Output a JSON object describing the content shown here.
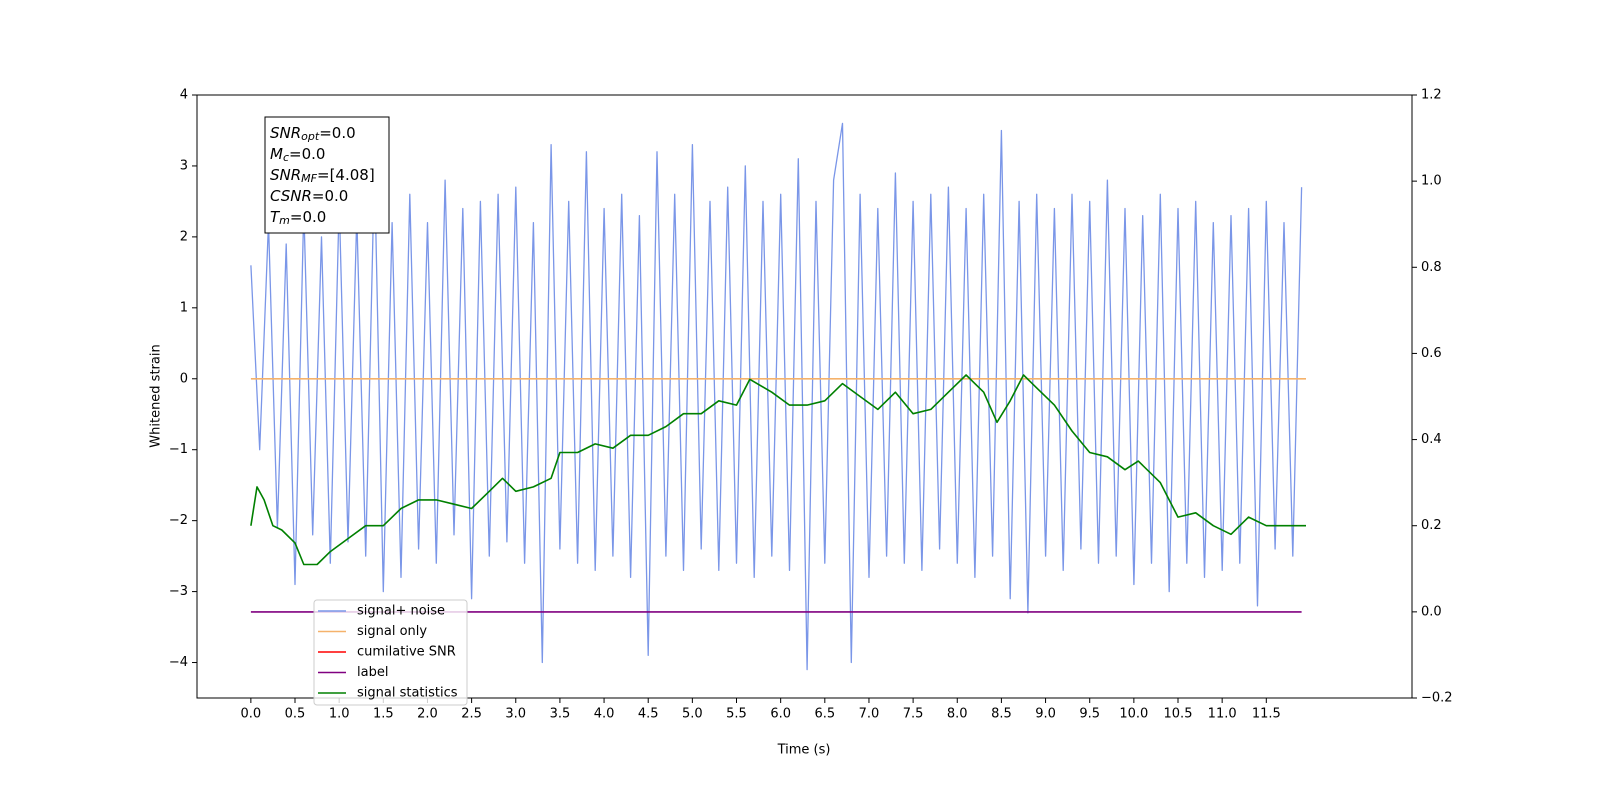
{
  "chart_data": {
    "type": "line",
    "xlabel": "Time (s)",
    "ylabel": "Whitened strain",
    "xlim": [
      -0.61,
      13.15
    ],
    "ylim": [
      -4.5,
      4
    ],
    "y2lim": [
      -0.2,
      1.2
    ],
    "xticks": [
      {
        "value": 0,
        "label": "0.0"
      },
      0.5,
      {
        "value": 1,
        "label": "1.0"
      },
      1.5,
      {
        "value": 2,
        "label": "2.0"
      },
      2.5,
      {
        "value": 3,
        "label": "3.0"
      },
      3.5,
      {
        "value": 4,
        "label": "4.0"
      },
      4.5,
      {
        "value": 5,
        "label": "5.0"
      },
      5.5,
      {
        "value": 6,
        "label": "6.0"
      },
      6.5,
      {
        "value": 7,
        "label": "7.0"
      },
      7.5,
      {
        "value": 8,
        "label": "8.0"
      },
      8.5,
      {
        "value": 9,
        "label": "9.0"
      },
      9.5,
      {
        "value": 10,
        "label": "10.0"
      },
      10.5,
      {
        "value": 11,
        "label": "11.0"
      },
      11.5
    ],
    "yticks": [
      {
        "value": -4,
        "label": "−4"
      },
      {
        "value": -3,
        "label": "−3"
      },
      {
        "value": -2,
        "label": "−2"
      },
      {
        "value": -1,
        "label": "−1"
      },
      0,
      1,
      2,
      3,
      4
    ],
    "y2ticks": [
      {
        "value": -0.2,
        "label": "−0.2"
      },
      {
        "value": 0,
        "label": "0.0"
      },
      0.2,
      0.4,
      0.6,
      0.8,
      {
        "value": 1,
        "label": "1.0"
      },
      1.2
    ],
    "legend": "lower left",
    "annotation": [
      {
        "base": "SNR",
        "sub": "opt",
        "text": "=0.0"
      },
      {
        "base": "M",
        "sub": "c",
        "text": "=0.0"
      },
      {
        "base": "SNR",
        "sub": "MF",
        "text": "=[4.08]"
      },
      {
        "base": "CSNR",
        "sub": null,
        "text": "=0.0"
      },
      {
        "base": "T",
        "sub": "m",
        "text": "=0.0"
      }
    ],
    "series": [
      {
        "name": "signal+ noise",
        "color": "#7a96e8",
        "axis": "y",
        "x": [
          0,
          0.1,
          0.2,
          0.3,
          0.4,
          0.5,
          0.6,
          0.7,
          0.8,
          0.9,
          1,
          1.1,
          1.2,
          1.3,
          1.4,
          1.5,
          1.6,
          1.7,
          1.8,
          1.9,
          2,
          2.1,
          2.2,
          2.3,
          2.4,
          2.5,
          2.6,
          2.7,
          2.8,
          2.9,
          3,
          3.1,
          3.2,
          3.3,
          3.4,
          3.5,
          3.6,
          3.7,
          3.8,
          3.9,
          4,
          4.1,
          4.2,
          4.3,
          4.4,
          4.5,
          4.6,
          4.7,
          4.8,
          4.9,
          5,
          5.1,
          5.2,
          5.3,
          5.4,
          5.5,
          5.6,
          5.7,
          5.8,
          5.9,
          6,
          6.1,
          6.2,
          6.3,
          6.4,
          6.5,
          6.6,
          6.7,
          6.8,
          6.9,
          7,
          7.1,
          7.2,
          7.3,
          7.4,
          7.5,
          7.6,
          7.7,
          7.8,
          7.9,
          8,
          8.1,
          8.2,
          8.3,
          8.4,
          8.5,
          8.6,
          8.7,
          8.8,
          8.9,
          9,
          9.1,
          9.2,
          9.3,
          9.4,
          9.5,
          9.6,
          9.7,
          9.8,
          9.9,
          10,
          10.1,
          10.2,
          10.3,
          10.4,
          10.5,
          10.6,
          10.7,
          10.8,
          10.9,
          11,
          11.1,
          11.2,
          11.3,
          11.4,
          11.5,
          11.6,
          11.7,
          11.8,
          11.9
        ],
        "values": [
          1.6,
          -1.0,
          2.2,
          -2.1,
          1.9,
          -2.9,
          2.4,
          -2.2,
          2.0,
          -2.6,
          2.5,
          -2.3,
          2.3,
          -2.5,
          3.0,
          -3.0,
          2.2,
          -2.8,
          2.6,
          -2.4,
          2.2,
          -2.6,
          2.8,
          -2.2,
          2.4,
          -3.1,
          2.5,
          -2.5,
          2.6,
          -2.3,
          2.7,
          -2.6,
          2.2,
          -4.0,
          3.3,
          -2.4,
          2.5,
          -2.6,
          3.2,
          -2.7,
          2.4,
          -2.5,
          2.6,
          -2.8,
          2.3,
          -3.9,
          3.2,
          -2.5,
          2.6,
          -2.7,
          3.3,
          -2.4,
          2.5,
          -2.7,
          2.7,
          -2.6,
          3.0,
          -2.8,
          2.5,
          -2.5,
          2.6,
          -2.7,
          3.1,
          -4.1,
          2.5,
          -2.6,
          2.8,
          3.6,
          -4.0,
          2.6,
          -2.8,
          2.4,
          -2.5,
          2.9,
          -2.6,
          2.5,
          -2.7,
          2.6,
          -2.4,
          2.7,
          -2.6,
          2.4,
          -2.8,
          2.6,
          -2.5,
          3.5,
          -3.1,
          2.5,
          -3.3,
          2.6,
          -2.5,
          2.4,
          -2.7,
          2.6,
          -2.4,
          2.5,
          -2.6,
          2.8,
          -2.5,
          2.4,
          -2.9,
          2.3,
          -2.6,
          2.6,
          -3.0,
          2.4,
          -2.6,
          2.5,
          -2.8,
          2.2,
          -2.7,
          2.3,
          -2.6,
          2.4,
          -3.2,
          2.5,
          -2.4,
          2.2,
          -2.5,
          2.7
        ]
      },
      {
        "name": "signal only",
        "color": "#f5b26b",
        "axis": "y",
        "x": [
          0,
          11.95
        ],
        "values": [
          0,
          0
        ]
      },
      {
        "name": "cumilative SNR",
        "color": "#ff0000",
        "axis": "y2",
        "x": [
          0,
          11.95
        ],
        "values": [
          null,
          null
        ]
      },
      {
        "name": "label",
        "color": "#800080",
        "axis": "y2",
        "x": [
          0,
          11.9
        ],
        "values": [
          0,
          0
        ]
      },
      {
        "name": "signal statistics",
        "color": "#008000",
        "axis": "y2",
        "x": [
          0,
          0.07,
          0.15,
          0.25,
          0.35,
          0.5,
          0.6,
          0.75,
          0.9,
          1.1,
          1.3,
          1.5,
          1.7,
          1.9,
          2.1,
          2.3,
          2.5,
          2.7,
          2.85,
          3,
          3.2,
          3.4,
          3.5,
          3.7,
          3.9,
          4.1,
          4.3,
          4.5,
          4.7,
          4.9,
          5.1,
          5.3,
          5.5,
          5.65,
          5.9,
          6.1,
          6.3,
          6.5,
          6.7,
          6.9,
          7.1,
          7.3,
          7.5,
          7.7,
          7.9,
          8.1,
          8.3,
          8.45,
          8.6,
          8.75,
          8.9,
          9.1,
          9.3,
          9.5,
          9.7,
          9.9,
          10.05,
          10.3,
          10.5,
          10.7,
          10.9,
          11.1,
          11.3,
          11.5,
          11.7,
          11.95
        ],
        "values": [
          0.2,
          0.29,
          0.26,
          0.2,
          0.19,
          0.16,
          0.11,
          0.11,
          0.14,
          0.17,
          0.2,
          0.2,
          0.24,
          0.26,
          0.26,
          0.25,
          0.24,
          0.28,
          0.31,
          0.28,
          0.29,
          0.31,
          0.37,
          0.37,
          0.39,
          0.38,
          0.41,
          0.41,
          0.43,
          0.46,
          0.46,
          0.49,
          0.48,
          0.54,
          0.51,
          0.48,
          0.48,
          0.49,
          0.53,
          0.5,
          0.47,
          0.51,
          0.46,
          0.47,
          0.51,
          0.55,
          0.51,
          0.44,
          0.49,
          0.55,
          0.52,
          0.48,
          0.42,
          0.37,
          0.36,
          0.33,
          0.35,
          0.3,
          0.22,
          0.23,
          0.2,
          0.18,
          0.22,
          0.2,
          0.2,
          0.2
        ]
      }
    ]
  }
}
